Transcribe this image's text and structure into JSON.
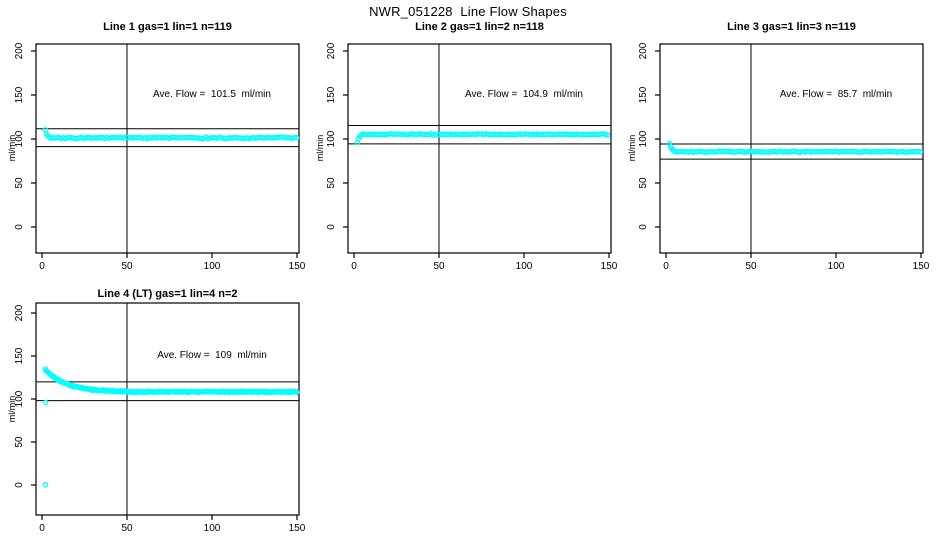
{
  "figure": {
    "title": "NWR_051228  Line Flow Shapes",
    "background": "#FFFFFF",
    "axis_color": "#000000",
    "marker_color": "#00FFFF"
  },
  "chart_data": [
    {
      "type": "scatter",
      "title": "Line 1 gas=1 lin=1 n=119",
      "n": 119,
      "ave_flow": 101.5,
      "ave_flow_text": "Ave. Flow =  101.5  ml/min",
      "xlabel": "",
      "ylabel": "ml/min",
      "xticks": [
        0,
        50,
        100,
        150
      ],
      "yticks": [
        0,
        50,
        100,
        150,
        200
      ],
      "xlim": [
        -3.5,
        151.5
      ],
      "ylim": [
        -30,
        208
      ],
      "vline_x": 50,
      "hlines": [
        111.7,
        91.4
      ],
      "marker": "open-circle",
      "marker_color": "#00FFFF",
      "series": {
        "seed": 11,
        "transient_points": [
          [
            2,
            110.5
          ],
          [
            2.7,
            105.5
          ],
          [
            3.4,
            103.5
          ],
          [
            4.2,
            102.5
          ]
        ],
        "steady": {
          "x_start": 5,
          "x_end": 150,
          "step": 1.27,
          "mean": 101.4,
          "noise": 1.1
        }
      }
    },
    {
      "type": "scatter",
      "title": "Line 2 gas=1 lin=2 n=118",
      "n": 118,
      "ave_flow": 104.9,
      "ave_flow_text": "Ave. Flow =  104.9  ml/min",
      "xlabel": "",
      "ylabel": "ml/min",
      "xticks": [
        0,
        50,
        100,
        150
      ],
      "yticks": [
        0,
        50,
        100,
        150,
        200
      ],
      "xlim": [
        -3.5,
        151.5
      ],
      "ylim": [
        -30,
        208
      ],
      "vline_x": 50,
      "hlines": [
        115.4,
        94.4
      ],
      "marker": "open-circle",
      "marker_color": "#00FFFF",
      "series": {
        "seed": 23,
        "transient_points": [
          [
            2,
            96
          ],
          [
            2.7,
            100.5
          ],
          [
            3.4,
            102.8
          ],
          [
            4.2,
            104.2
          ]
        ],
        "steady": {
          "x_start": 5,
          "x_end": 150,
          "step": 1.3,
          "mean": 105.2,
          "noise": 1.0
        }
      }
    },
    {
      "type": "scatter",
      "title": "Line 3 gas=1 lin=3 n=119",
      "n": 119,
      "ave_flow": 85.7,
      "ave_flow_text": "Ave. Flow =  85.7  ml/min",
      "xlabel": "",
      "ylabel": "ml/min",
      "xticks": [
        0,
        50,
        100,
        150
      ],
      "yticks": [
        0,
        50,
        100,
        150,
        200
      ],
      "xlim": [
        -3.5,
        151.5
      ],
      "ylim": [
        -30,
        208
      ],
      "vline_x": 50,
      "hlines": [
        94.3,
        77.1
      ],
      "marker": "open-circle",
      "marker_color": "#00FFFF",
      "series": {
        "seed": 37,
        "transient_points": [
          [
            2,
            95
          ],
          [
            2.7,
            91.5
          ],
          [
            3.4,
            89
          ],
          [
            4.2,
            87.2
          ],
          [
            5,
            86.2
          ]
        ],
        "steady": {
          "x_start": 6,
          "x_end": 150,
          "step": 1.26,
          "mean": 85.6,
          "noise": 0.9
        }
      }
    },
    {
      "type": "scatter",
      "title": "Line 4 (LT) gas=1 lin=4 n=2",
      "n": 2,
      "ave_flow": 109,
      "ave_flow_text": "Ave. Flow =  109  ml/min",
      "xlabel": "",
      "ylabel": "ml/min",
      "xticks": [
        0,
        50,
        100,
        150
      ],
      "yticks": [
        0,
        50,
        100,
        150,
        200
      ],
      "xlim": [
        -3.5,
        151.5
      ],
      "ylim": [
        -35,
        211
      ],
      "vline_x": 50,
      "hlines": [
        119.9,
        98.1
      ],
      "marker": "open-circle",
      "marker_color": "#00FFFF",
      "series": {
        "seed": 44,
        "outlier_points": [
          [
            2,
            0.5
          ],
          [
            2.2,
            96
          ]
        ],
        "decay": {
          "x_start": 2,
          "x_end": 50,
          "step": 0.45,
          "base": 108.3,
          "amp": 26,
          "tau": 12,
          "noise": 0.8
        },
        "steady": {
          "x_start": 50.4,
          "x_end": 150,
          "step": 0.45,
          "mean": 108.4,
          "noise": 0.9
        }
      }
    }
  ]
}
